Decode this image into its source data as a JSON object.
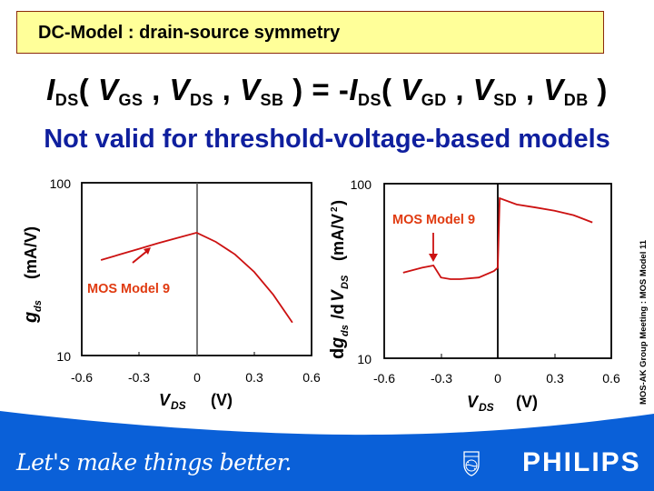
{
  "header": {
    "title": "DC-Model : drain-source symmetry"
  },
  "equation": {
    "lhs_I": "I",
    "lhs_I_sub": "DS",
    "open1": "( ",
    "v1": "V",
    "v1_sub": "GS",
    "sep1": " , ",
    "v2": "V",
    "v2_sub": "DS",
    "sep2": " , ",
    "v3": "V",
    "v3_sub": "SB",
    "close_eq": " ) = -",
    "rhs_I": "I",
    "rhs_I_sub": "DS",
    "open2": "( ",
    "v4": "V",
    "v4_sub": "GD",
    "sep3": " , ",
    "v5": "V",
    "v5_sub": "SD",
    "sep4": " , ",
    "v6": "V",
    "v6_sub": "DB",
    "close2": " )"
  },
  "subtitle": "Not valid for threshold-voltage-based models",
  "side_note": "MOS-AK Group Meeting : MOS Model 11",
  "footer": {
    "slogan": "Let's make things better.",
    "brand": "PHILIPS",
    "shield_text": "PHILIPS",
    "band_color": "#0a60d8"
  },
  "colors": {
    "title_bg": "#ffff99",
    "title_border": "#8b2a0a",
    "subtitle": "#0f1f9e",
    "curve": "#cc1111",
    "annotation": "#e03a10"
  },
  "chart_data": [
    {
      "type": "line",
      "title": "",
      "xlabel": "V_DS (V)",
      "ylabel": "g_ds (mA/V)",
      "xlim": [
        -0.6,
        0.6
      ],
      "ylim": [
        10,
        100
      ],
      "yscale": "log",
      "xticks": [
        "-0.6",
        "-0.3",
        "0",
        "0.3",
        "0.6"
      ],
      "yticks": [
        "10",
        "100"
      ],
      "grid": false,
      "annotation": "MOS Model 9",
      "series": [
        {
          "name": "MOS Model 9",
          "x": [
            -0.5,
            -0.4,
            -0.3,
            -0.2,
            -0.1,
            0.0,
            0.1,
            0.2,
            0.3,
            0.4,
            0.5
          ],
          "values": [
            35.7,
            38.5,
            41.5,
            44.7,
            48.0,
            51.4,
            45.5,
            38.5,
            30.5,
            22.5,
            15.5
          ]
        }
      ]
    },
    {
      "type": "line",
      "title": "",
      "xlabel": "V_DS (V)",
      "ylabel": "dg_ds /dV_DS (mA/V²)",
      "xlim": [
        -0.6,
        0.6
      ],
      "ylim": [
        10,
        100
      ],
      "yscale": "log",
      "xticks": [
        "-0.6",
        "-0.3",
        "0",
        "0.3",
        "0.6"
      ],
      "yticks": [
        "10",
        "100"
      ],
      "grid": false,
      "annotation": "MOS Model 9",
      "series": [
        {
          "name": "MOS Model 9",
          "x": [
            -0.5,
            -0.4,
            -0.34,
            -0.3,
            -0.25,
            -0.2,
            -0.1,
            -0.02,
            0.0,
            0.01,
            0.1,
            0.2,
            0.3,
            0.4,
            0.5
          ],
          "values": [
            30.9,
            33.0,
            34.0,
            29.0,
            28.4,
            28.4,
            29.0,
            31.6,
            33.0,
            82.5,
            76.0,
            73.0,
            70.0,
            66.0,
            60.0
          ]
        }
      ]
    }
  ]
}
